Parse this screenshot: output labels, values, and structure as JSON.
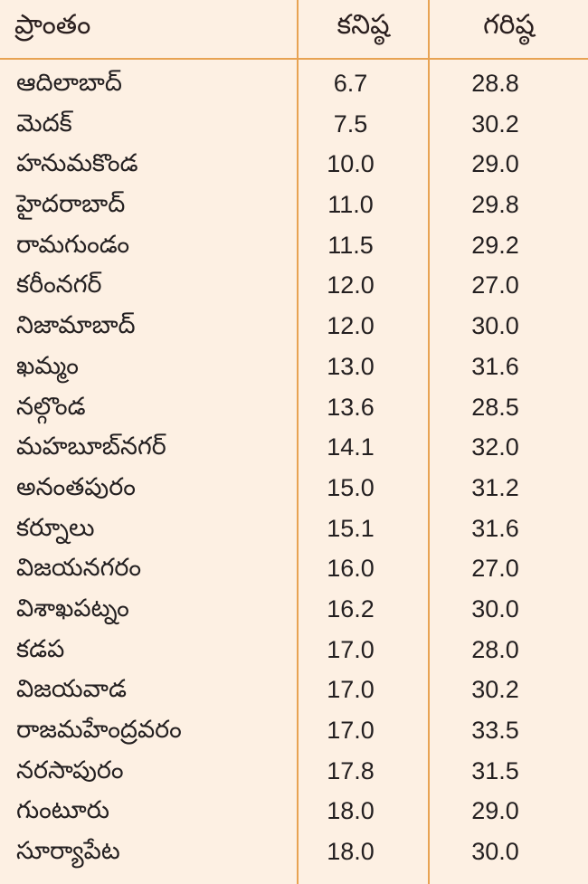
{
  "table": {
    "headers": {
      "region": "ప్రాంతం",
      "min": "కనిష్ఠ",
      "max": "గరిష్ఠ"
    },
    "rows": [
      {
        "region": "ఆదిలాబాద్",
        "min": "6.7",
        "max": "28.8"
      },
      {
        "region": "మెదక్",
        "min": "7.5",
        "max": "30.2"
      },
      {
        "region": "హనుమకొండ",
        "min": "10.0",
        "max": "29.0"
      },
      {
        "region": "హైదరాబాద్",
        "min": "11.0",
        "max": "29.8"
      },
      {
        "region": "రామగుండం",
        "min": "11.5",
        "max": "29.2"
      },
      {
        "region": "కరీంనగర్",
        "min": "12.0",
        "max": "27.0"
      },
      {
        "region": "నిజామాబాద్",
        "min": "12.0",
        "max": "30.0"
      },
      {
        "region": "ఖమ్మం",
        "min": "13.0",
        "max": "31.6"
      },
      {
        "region": "నల్గొండ",
        "min": "13.6",
        "max": "28.5"
      },
      {
        "region": "మహబూబ్‌నగర్",
        "min": "14.1",
        "max": "32.0"
      },
      {
        "region": "అనంతపురం",
        "min": "15.0",
        "max": "31.2"
      },
      {
        "region": "కర్నూలు",
        "min": "15.1",
        "max": "31.6"
      },
      {
        "region": "విజయనగరం",
        "min": "16.0",
        "max": "27.0"
      },
      {
        "region": "విశాఖపట్నం",
        "min": "16.2",
        "max": "30.0"
      },
      {
        "region": "కడప",
        "min": "17.0",
        "max": "28.0"
      },
      {
        "region": "విజయవాడ",
        "min": "17.0",
        "max": "30.2"
      },
      {
        "region": "రాజమహేంద్రవరం",
        "min": "17.0",
        "max": "33.5"
      },
      {
        "region": "నరసాపురం",
        "min": "17.8",
        "max": "31.5"
      },
      {
        "region": "గుంటూరు",
        "min": "18.0",
        "max": "29.0"
      },
      {
        "region": "సూర్యాపేట",
        "min": "18.0",
        "max": "30.0"
      }
    ]
  },
  "colors": {
    "background": "#fdf0e3",
    "rule": "#e8a353",
    "text": "#231f20"
  }
}
